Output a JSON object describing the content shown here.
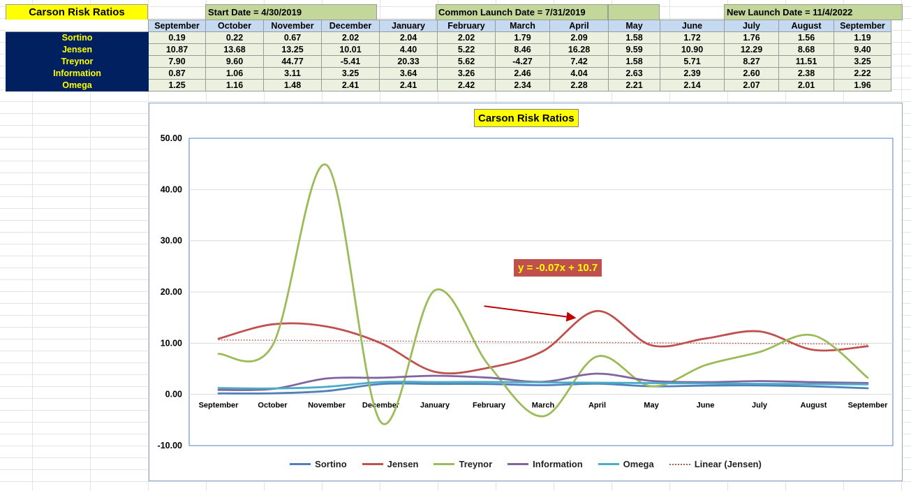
{
  "sheet": {
    "title": "Carson Risk Ratios",
    "start_date": "Start Date = 4/30/2019",
    "common_launch": "Common Launch Date = 7/31/2019",
    "new_launch": "New Launch Date = 11/4/2022",
    "months": [
      "September",
      "October",
      "November",
      "December",
      "January",
      "February",
      "March",
      "April",
      "May",
      "June",
      "July",
      "August",
      "September"
    ],
    "rows": [
      {
        "label": "Sortino",
        "values": [
          "0.19",
          "0.22",
          "0.67",
          "2.02",
          "2.04",
          "2.02",
          "1.79",
          "2.09",
          "1.58",
          "1.72",
          "1.76",
          "1.56",
          "1.19"
        ]
      },
      {
        "label": "Jensen",
        "values": [
          "10.87",
          "13.68",
          "13.25",
          "10.01",
          "4.40",
          "5.22",
          "8.46",
          "16.28",
          "9.59",
          "10.90",
          "12.29",
          "8.68",
          "9.40"
        ]
      },
      {
        "label": "Treynor",
        "values": [
          "7.90",
          "9.60",
          "44.77",
          "-5.41",
          "20.33",
          "5.62",
          "-4.27",
          "7.42",
          "1.58",
          "5.71",
          "8.27",
          "11.51",
          "3.25"
        ]
      },
      {
        "label": "Information",
        "values": [
          "0.87",
          "1.06",
          "3.11",
          "3.25",
          "3.64",
          "3.26",
          "2.46",
          "4.04",
          "2.63",
          "2.39",
          "2.60",
          "2.38",
          "2.22"
        ]
      },
      {
        "label": "Omega",
        "values": [
          "1.25",
          "1.16",
          "1.48",
          "2.41",
          "2.41",
          "2.42",
          "2.34",
          "2.28",
          "2.21",
          "2.14",
          "2.07",
          "2.01",
          "1.96"
        ]
      }
    ]
  },
  "chart_data": {
    "type": "line",
    "title": "Carson Risk Ratios",
    "categories": [
      "September",
      "October",
      "November",
      "December",
      "January",
      "February",
      "March",
      "April",
      "May",
      "June",
      "July",
      "August",
      "September"
    ],
    "ylim": [
      -10,
      50
    ],
    "yticks": [
      "-10.00",
      "0.00",
      "10.00",
      "20.00",
      "30.00",
      "40.00",
      "50.00"
    ],
    "ytick_values": [
      -10,
      0,
      10,
      20,
      30,
      40,
      50
    ],
    "grid": true,
    "legend_position": "bottom",
    "series": [
      {
        "name": "Sortino",
        "color": "#4f81bd",
        "values": [
          0.19,
          0.22,
          0.67,
          2.02,
          2.04,
          2.02,
          1.79,
          2.09,
          1.58,
          1.72,
          1.76,
          1.56,
          1.19
        ]
      },
      {
        "name": "Jensen",
        "color": "#c0504d",
        "values": [
          10.87,
          13.68,
          13.25,
          10.01,
          4.4,
          5.22,
          8.46,
          16.28,
          9.59,
          10.9,
          12.29,
          8.68,
          9.4
        ]
      },
      {
        "name": "Treynor",
        "color": "#9bbb59",
        "values": [
          7.9,
          9.6,
          44.77,
          -5.41,
          20.33,
          5.62,
          -4.27,
          7.42,
          1.58,
          5.71,
          8.27,
          11.51,
          3.25
        ]
      },
      {
        "name": "Information",
        "color": "#8064a2",
        "values": [
          0.87,
          1.06,
          3.11,
          3.25,
          3.64,
          3.26,
          2.46,
          4.04,
          2.63,
          2.39,
          2.6,
          2.38,
          2.22
        ]
      },
      {
        "name": "Omega",
        "color": "#4bacc6",
        "values": [
          1.25,
          1.16,
          1.48,
          2.41,
          2.41,
          2.42,
          2.34,
          2.28,
          2.21,
          2.14,
          2.07,
          2.01,
          1.96
        ]
      }
    ],
    "trendline": {
      "name": "Linear (Jensen)",
      "color": "#c0504d",
      "slope": -0.07,
      "intercept": 10.7,
      "equation": "y = -0.07x + 10.7"
    },
    "annotation_arrow_color": "#c00000"
  }
}
